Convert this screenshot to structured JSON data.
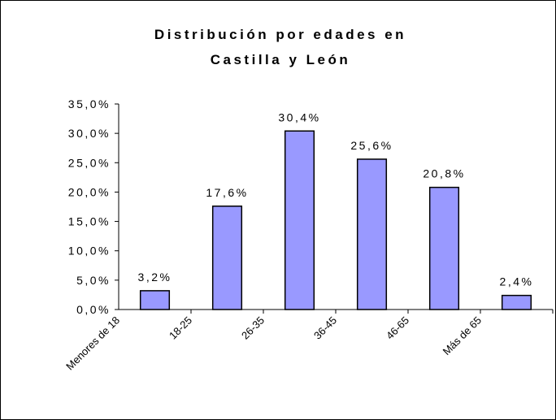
{
  "chart_data": {
    "type": "bar",
    "title": [
      "Distribución por edades en",
      "Castilla y León"
    ],
    "categories": [
      "Menores de 18",
      "18-25",
      "26-35",
      "36-45",
      "46-65",
      "Más de 65"
    ],
    "values": [
      3.2,
      17.6,
      30.4,
      25.6,
      20.8,
      2.4
    ],
    "value_labels": [
      "3,2%",
      "17,6%",
      "30,4%",
      "25,6%",
      "20,8%",
      "2,4%"
    ],
    "color": "#9999ff",
    "ylim": [
      0,
      35
    ],
    "yticks": [
      {
        "value": 0,
        "label": "0,0%"
      },
      {
        "value": 5,
        "label": "5,0%"
      },
      {
        "value": 10,
        "label": "10,0%"
      },
      {
        "value": 15,
        "label": "15,0%"
      },
      {
        "value": 20,
        "label": "20,0%"
      },
      {
        "value": 25,
        "label": "25,0%"
      },
      {
        "value": 30,
        "label": "30,0%"
      },
      {
        "value": 35,
        "label": "35,0%"
      }
    ]
  }
}
